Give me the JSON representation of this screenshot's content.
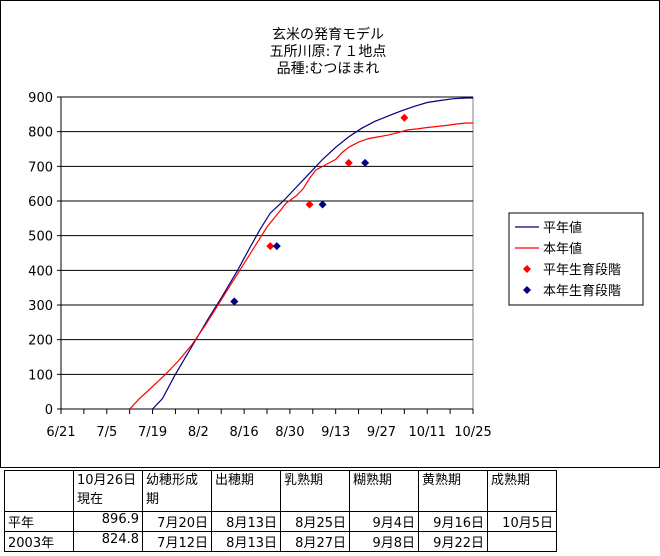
{
  "chart_data": {
    "type": "line",
    "title_lines": [
      "玄米の発育モデル",
      "五所川原:７１地点",
      "品種:むつほまれ"
    ],
    "x_ticks": [
      "6/21",
      "7/5",
      "7/19",
      "8/2",
      "8/16",
      "8/30",
      "9/13",
      "9/27",
      "10/11",
      "10/25"
    ],
    "xlim_days": [
      0,
      126
    ],
    "ylim": [
      0,
      900
    ],
    "y_ticks": [
      0,
      100,
      200,
      300,
      400,
      500,
      600,
      700,
      800,
      900
    ],
    "grid": true,
    "legend_position": "right",
    "series": [
      {
        "name": "平年値",
        "color": "#000080",
        "kind": "line",
        "points": [
          [
            28,
            0
          ],
          [
            31,
            30
          ],
          [
            35,
            100
          ],
          [
            40,
            180
          ],
          [
            45,
            260
          ],
          [
            49,
            320
          ],
          [
            54,
            400
          ],
          [
            58,
            470
          ],
          [
            61,
            520
          ],
          [
            64,
            565
          ],
          [
            68,
            600
          ],
          [
            72,
            640
          ],
          [
            76,
            680
          ],
          [
            80,
            720
          ],
          [
            84,
            755
          ],
          [
            88,
            785
          ],
          [
            92,
            810
          ],
          [
            96,
            830
          ],
          [
            100,
            845
          ],
          [
            104,
            860
          ],
          [
            108,
            873
          ],
          [
            112,
            884
          ],
          [
            116,
            890
          ],
          [
            120,
            895
          ],
          [
            124,
            897
          ],
          [
            126,
            897
          ]
        ]
      },
      {
        "name": "本年値",
        "color": "#ff0000",
        "kind": "line",
        "points": [
          [
            21,
            0
          ],
          [
            24,
            30
          ],
          [
            28,
            65
          ],
          [
            32,
            100
          ],
          [
            36,
            140
          ],
          [
            40,
            185
          ],
          [
            44,
            240
          ],
          [
            48,
            300
          ],
          [
            52,
            360
          ],
          [
            56,
            420
          ],
          [
            60,
            480
          ],
          [
            63,
            525
          ],
          [
            66,
            560
          ],
          [
            69,
            595
          ],
          [
            72,
            615
          ],
          [
            74,
            635
          ],
          [
            76,
            665
          ],
          [
            78,
            690
          ],
          [
            81,
            705
          ],
          [
            84,
            720
          ],
          [
            86,
            740
          ],
          [
            88,
            755
          ],
          [
            91,
            770
          ],
          [
            94,
            780
          ],
          [
            97,
            785
          ],
          [
            100,
            790
          ],
          [
            103,
            797
          ],
          [
            106,
            805
          ],
          [
            109,
            808
          ],
          [
            112,
            812
          ],
          [
            115,
            815
          ],
          [
            118,
            818
          ],
          [
            121,
            822
          ],
          [
            124,
            825
          ],
          [
            126,
            825
          ]
        ]
      },
      {
        "name": "平年生育段階",
        "color": "#ff0000",
        "kind": "marker",
        "points": [
          [
            53,
            310
          ],
          [
            64,
            470
          ],
          [
            76,
            590
          ],
          [
            88,
            710
          ],
          [
            105,
            840
          ]
        ]
      },
      {
        "name": "本年生育段階",
        "color": "#000080",
        "kind": "marker",
        "points": [
          [
            53,
            310
          ],
          [
            66,
            470
          ],
          [
            80,
            590
          ],
          [
            93,
            710
          ]
        ]
      }
    ]
  },
  "table": {
    "headers": [
      "",
      "10月26日\n現在",
      "幼穂形成\n期",
      "出穂期",
      "乳熟期",
      "糊熟期",
      "黄熟期",
      "成熟期"
    ],
    "rows": [
      [
        "平年",
        "896.9",
        "7月20日",
        "8月13日",
        "8月25日",
        "9月4日",
        "9月16日",
        "10月5日"
      ],
      [
        "2003年",
        "824.8",
        "7月12日",
        "8月13日",
        "8月27日",
        "9月8日",
        "9月22日",
        ""
      ]
    ]
  }
}
